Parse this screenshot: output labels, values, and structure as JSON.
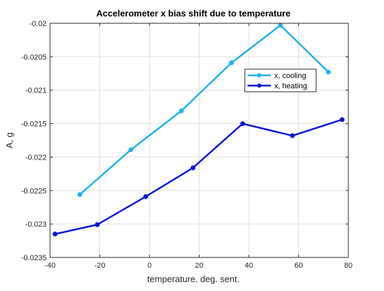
{
  "chart_data": {
    "type": "line",
    "title": "Accelerometer x bias shift due to temperature",
    "xlabel": "temperature. deg. sent.",
    "ylabel": "A, g",
    "xlim": [
      -40,
      80
    ],
    "ylim": [
      -0.0235,
      -0.02
    ],
    "xticks": [
      -40,
      -20,
      0,
      20,
      40,
      60,
      80
    ],
    "yticks": [
      -0.0235,
      -0.023,
      -0.0225,
      -0.022,
      -0.0215,
      -0.021,
      -0.0205,
      -0.02
    ],
    "xtick_labels": [
      "-40",
      "-20",
      "0",
      "20",
      "40",
      "60",
      "80"
    ],
    "ytick_labels": [
      "-0.0235",
      "-0.023",
      "-0.0225",
      "-0.022",
      "-0.0215",
      "-0.021",
      "-0.0205",
      "-0.02"
    ],
    "grid": true,
    "legend_position": "top-right",
    "series": [
      {
        "name": "x, cooling",
        "color": "#1FB0EE",
        "marker": "circle",
        "x": [
          -28,
          -7.5,
          12.8,
          33,
          52.7,
          72
        ],
        "y": [
          -0.02256,
          -0.02189,
          -0.02131,
          -0.02059,
          -0.02003,
          -0.02073
        ]
      },
      {
        "name": "x, heating",
        "color": "#0A14D8",
        "marker": "circle",
        "x": [
          -38,
          -21,
          -1.5,
          17.5,
          37.5,
          57.5,
          77.5
        ],
        "y": [
          -0.02315,
          -0.02301,
          -0.02259,
          -0.02216,
          -0.0215,
          -0.02168,
          -0.02144
        ]
      }
    ]
  }
}
